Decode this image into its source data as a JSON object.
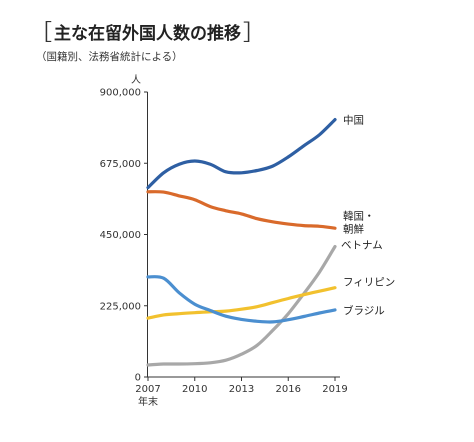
{
  "header": {
    "title": "主な在留外国人数の推移",
    "subtitle": "（国籍別、法務省統計による）",
    "bracket_open": "［",
    "bracket_close": "］"
  },
  "chart_data": {
    "type": "line",
    "title": "主な在留外国人数の推移",
    "subtitle": "（国籍別、法務省統計による）",
    "ylabel": "人",
    "xlabel": "年末",
    "x": [
      2007,
      2008,
      2009,
      2010,
      2011,
      2012,
      2013,
      2014,
      2015,
      2016,
      2017,
      2018,
      2019
    ],
    "xticks": [
      2007,
      2010,
      2013,
      2016,
      2019
    ],
    "xtick_labels": [
      "2007",
      "2010",
      "2013",
      "2016",
      "2019"
    ],
    "xlim": [
      2007,
      2019
    ],
    "ylim": [
      0,
      900000
    ],
    "yticks": [
      0,
      225000,
      450000,
      675000,
      900000
    ],
    "ytick_labels": [
      "0",
      "225,000",
      "450,000",
      "675,000",
      "900,000"
    ],
    "grid": false,
    "legend": "inline-right",
    "series": [
      {
        "name": "中国",
        "color": "#2e5fa3",
        "values": [
          598000,
          645000,
          672000,
          682000,
          672000,
          648000,
          645000,
          652000,
          666000,
          695000,
          730000,
          765000,
          813000
        ]
      },
      {
        "name": "韓国・朝鮮",
        "color": "#d96a2b",
        "values": [
          585000,
          584000,
          572000,
          560000,
          538000,
          525000,
          515000,
          500000,
          490000,
          483000,
          478000,
          476000,
          470000
        ]
      },
      {
        "name": "ベトナム",
        "color": "#a8a8a8",
        "values": [
          38000,
          41000,
          41000,
          42000,
          45000,
          53000,
          72000,
          100000,
          147000,
          200000,
          263000,
          331000,
          412000
        ]
      },
      {
        "name": "フィリピン",
        "color": "#f2c12e",
        "values": [
          186000,
          196000,
          200000,
          203000,
          206000,
          208000,
          214000,
          222000,
          235000,
          248000,
          260000,
          271000,
          282000
        ]
      },
      {
        "name": "ブラジル",
        "color": "#4b8fd0",
        "values": [
          316000,
          312000,
          266000,
          230000,
          210000,
          192000,
          182000,
          176000,
          174000,
          181000,
          191000,
          202000,
          212000
        ]
      }
    ],
    "series_labels": [
      {
        "series": "中国",
        "lines": [
          "中国"
        ]
      },
      {
        "series": "韓国・朝鮮",
        "lines": [
          "韓国・",
          "朝鮮"
        ]
      },
      {
        "series": "ベトナム",
        "lines": [
          "ベトナム"
        ]
      },
      {
        "series": "フィリピン",
        "lines": [
          "フィリピン"
        ]
      },
      {
        "series": "ブラジル",
        "lines": [
          "ブラジル"
        ]
      }
    ]
  }
}
